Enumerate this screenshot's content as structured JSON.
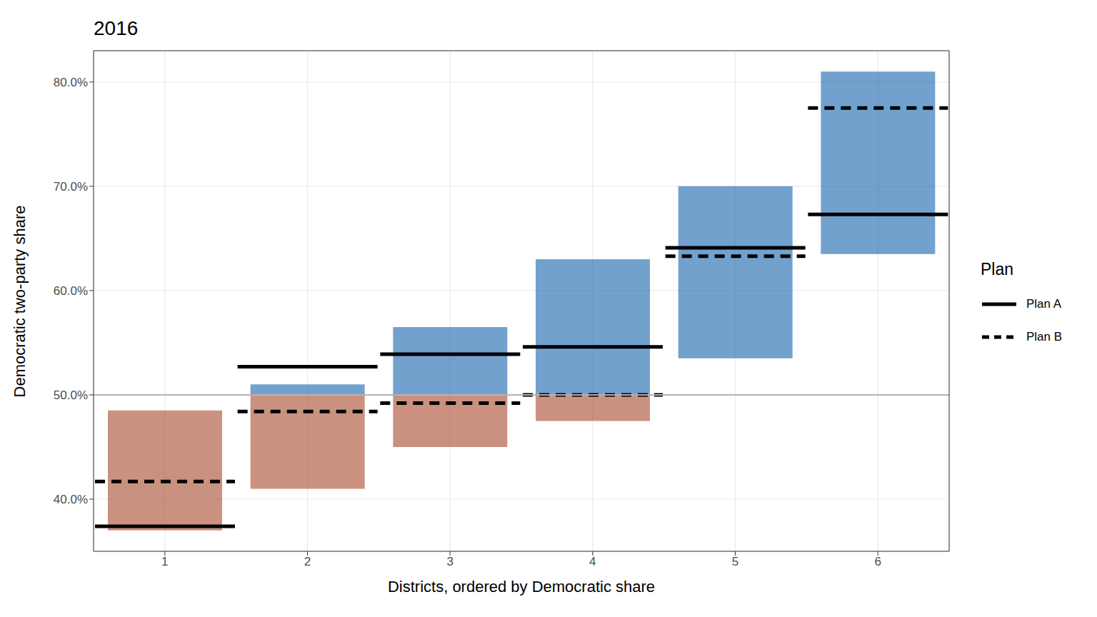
{
  "chart_data": {
    "type": "range_with_plans",
    "title": "2016",
    "x_label": "Districts, ordered by Democratic share",
    "y_label": "Democratic two-party share",
    "legend_title": "Plan",
    "legend": "right",
    "grid": true,
    "categories": [
      "1",
      "2",
      "3",
      "4",
      "5",
      "6"
    ],
    "ylim": [
      35,
      83
    ],
    "yticks": [
      {
        "value": 40,
        "label": "40.0%"
      },
      {
        "value": 50,
        "label": "50.0%"
      },
      {
        "value": 60,
        "label": "60.0%"
      },
      {
        "value": 70,
        "label": "70.0%"
      },
      {
        "value": 80,
        "label": "80.0%"
      }
    ],
    "hline": 50,
    "ensemble": [
      {
        "color": "#a8472c",
        "low": [
          37,
          41,
          45,
          47.5,
          null,
          null
        ],
        "high": [
          48.5,
          50,
          50,
          50,
          null,
          null
        ]
      },
      {
        "color": "#1463ad",
        "low": [
          null,
          50,
          50,
          50,
          53.5,
          63.5
        ],
        "high": [
          null,
          51,
          56.5,
          63,
          70,
          81
        ]
      }
    ],
    "series": [
      {
        "name": "Plan A",
        "color": "#000000",
        "line_style": "solid",
        "values": [
          37.4,
          52.7,
          53.9,
          54.6,
          64.1,
          67.3
        ]
      },
      {
        "name": "Plan B",
        "color": "#000000",
        "line_style": "dashed",
        "values": [
          41.7,
          48.4,
          49.2,
          50.0,
          63.3,
          77.5
        ]
      }
    ]
  }
}
